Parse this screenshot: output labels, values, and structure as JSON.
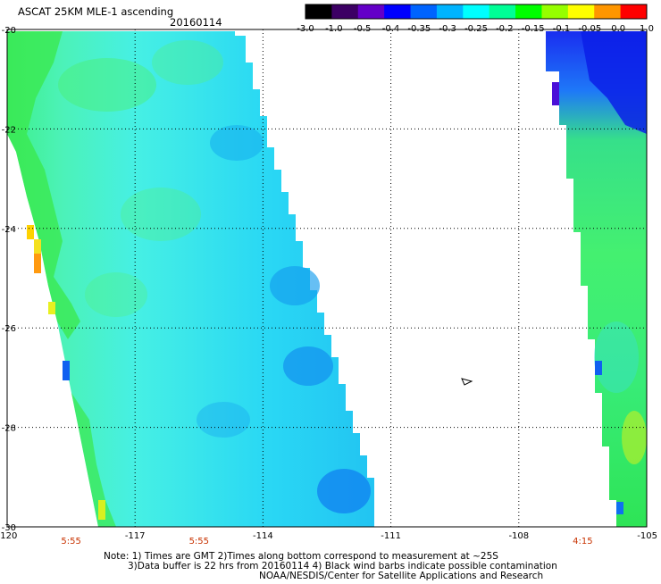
{
  "header": {
    "title": "ASCAT 25KM MLE-1 ascending",
    "date": "20160114"
  },
  "colorbar": {
    "labels": [
      "-3.0",
      "-1.0",
      "-0.5",
      "-0.4",
      "-0.35",
      "-0.3",
      "-0.25",
      "-0.2",
      "-0.15",
      "-0.1",
      "-0.05",
      "0.0",
      "1.0"
    ],
    "colors": [
      "#000000",
      "#3c0064",
      "#6400c8",
      "#0000ff",
      "#0064ff",
      "#00b4ff",
      "#00ffff",
      "#00ff96",
      "#00ff00",
      "#96ff00",
      "#ffff00",
      "#ff9600",
      "#ff0000"
    ]
  },
  "map": {
    "lon_labels": [
      "-120",
      "-117",
      "-114",
      "-111",
      "-108",
      "-105"
    ],
    "lat_labels": [
      "-20",
      "-22",
      "-24",
      "-26",
      "-28",
      "-30"
    ],
    "time_labels": [
      "5:55",
      "5:55",
      "4:15"
    ],
    "time_color": "#c83200"
  },
  "notes": {
    "line1": "Note: 1) Times are GMT 2)Times along bottom correspond to measurement at ~25S",
    "line2": "3)Data buffer is 22 hrs from 20160114 4) Black wind barbs indicate possible contamination",
    "line3": "NOAA/NESDIS/Center for Satellite Applications and Research"
  }
}
